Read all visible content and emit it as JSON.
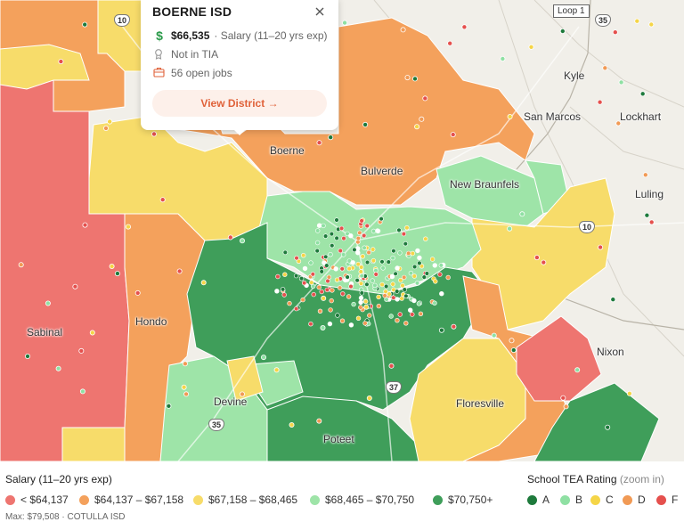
{
  "colors": {
    "red": "#ee7570",
    "orange": "#f4a15c",
    "yellow": "#f7dc6a",
    "lightgreen": "#9ee4a8",
    "darkgreen": "#3f9e5a",
    "rating_a": "#1e7a3c",
    "rating_b": "#8fe0a3",
    "rating_c": "#f5d547",
    "rating_d": "#f19a55",
    "rating_f": "#e5504d"
  },
  "popup": {
    "district": "BOERNE ISD",
    "salary_amount": "$66,535",
    "salary_note": "· Salary (11–20 yrs exp)",
    "tia": "Not in TIA",
    "jobs": "56 open jobs",
    "button": "View District →"
  },
  "places": {
    "boerne": "Boerne",
    "bulverde": "Bulverde",
    "new_braunfels": "New Braunfels",
    "san_marcos": "San Marcos",
    "lockhart": "Lockhart",
    "kyle": "Kyle",
    "luling": "Luling",
    "hondo": "Hondo",
    "sabinal": "Sabinal",
    "nixon": "Nixon",
    "devine": "Devine",
    "floresville": "Floresville",
    "poteet": "Poteet"
  },
  "roads": {
    "i10_west": "10",
    "i35_north": "35",
    "i10_east": "10",
    "i37": "37",
    "i35_south": "35",
    "loop": "Loop 1"
  },
  "legend": {
    "salary_title": "Salary (11–20 yrs exp)",
    "salary_bins": [
      {
        "label": "< $64,137",
        "color": "#ee7570"
      },
      {
        "label": "$64,137 – $67,158",
        "color": "#f4a15c"
      },
      {
        "label": "$67,158 – $68,465",
        "color": "#f7dc6a"
      },
      {
        "label": "$68,465 – $70,750",
        "color": "#9ee4a8"
      },
      {
        "label": "$70,750+",
        "color": "#3f9e5a"
      }
    ],
    "rating_title": "School TEA Rating",
    "rating_subtitle": "(zoom in)",
    "ratings": [
      {
        "label": "A",
        "color": "#1e7a3c"
      },
      {
        "label": "B",
        "color": "#8fe0a3"
      },
      {
        "label": "C",
        "color": "#f5d547"
      },
      {
        "label": "D",
        "color": "#f19a55"
      },
      {
        "label": "F",
        "color": "#e5504d"
      }
    ],
    "max_note": "Max: $79,508 · COTULLA ISD"
  }
}
